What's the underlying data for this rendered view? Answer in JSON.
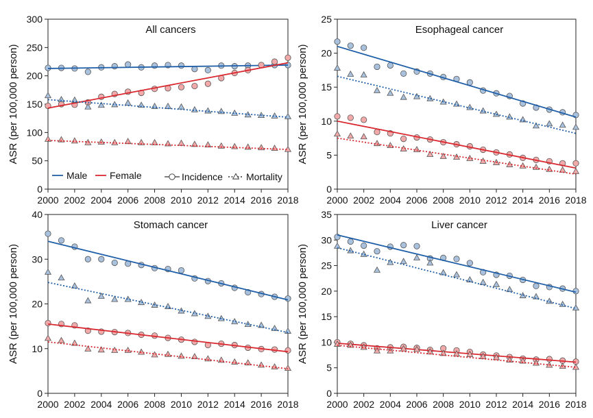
{
  "colors": {
    "male": "#1f5fa8",
    "female": "#d9282f",
    "male_fill": "#a9c1dd",
    "female_fill": "#f2a9a9",
    "marker_stroke": "#555555"
  },
  "legend": {
    "male": "Male",
    "female": "Female",
    "incidence": "Incidence",
    "mortality": "Mortality"
  },
  "chart_data": [
    {
      "type": "scatter",
      "title": "All cancers",
      "xlabel": "",
      "ylabel": "ASR (per 100,000 person)",
      "xlim": [
        2000,
        2018
      ],
      "ylim": [
        0,
        300
      ],
      "xticks": [
        2000,
        2002,
        2004,
        2006,
        2008,
        2010,
        2012,
        2014,
        2016,
        2018
      ],
      "yticks": [
        0,
        50,
        100,
        150,
        200,
        250,
        300
      ],
      "x": [
        2000,
        2001,
        2002,
        2003,
        2004,
        2005,
        2006,
        2007,
        2008,
        2009,
        2010,
        2011,
        2012,
        2013,
        2014,
        2015,
        2016,
        2017,
        2018
      ],
      "legend_shown": true,
      "series": [
        {
          "group": "male",
          "measure": "incidence",
          "values": [
            214,
            214,
            213,
            207,
            215,
            217,
            220,
            215,
            218,
            219,
            218,
            212,
            210,
            218,
            217,
            218,
            219,
            219,
            219
          ],
          "trend": [
            213,
            219
          ]
        },
        {
          "group": "female",
          "measure": "incidence",
          "values": [
            147,
            150,
            149,
            153,
            163,
            168,
            172,
            170,
            177,
            178,
            180,
            182,
            186,
            196,
            205,
            210,
            219,
            225,
            232
          ],
          "trend": [
            143,
            223
          ]
        },
        {
          "group": "male",
          "measure": "mortality",
          "values": [
            165,
            158,
            157,
            145,
            148,
            149,
            152,
            148,
            146,
            146,
            145,
            140,
            138,
            137,
            134,
            131,
            130,
            129,
            128
          ],
          "trend": [
            158,
            127
          ]
        },
        {
          "group": "female",
          "measure": "mortality",
          "values": [
            88,
            87,
            85,
            82,
            83,
            82,
            84,
            82,
            82,
            80,
            81,
            79,
            78,
            76,
            75,
            74,
            73,
            72,
            70
          ],
          "trend": [
            86,
            70
          ]
        }
      ]
    },
    {
      "type": "scatter",
      "title": "Esophageal cancer",
      "xlabel": "",
      "ylabel": "ASR (per 100,000 person)",
      "xlim": [
        2000,
        2018
      ],
      "ylim": [
        0,
        25
      ],
      "xticks": [
        2000,
        2002,
        2004,
        2006,
        2008,
        2010,
        2012,
        2014,
        2016,
        2018
      ],
      "yticks": [
        0,
        5,
        10,
        15,
        20,
        25
      ],
      "x": [
        2000,
        2001,
        2002,
        2003,
        2004,
        2005,
        2006,
        2007,
        2008,
        2009,
        2010,
        2011,
        2012,
        2013,
        2014,
        2015,
        2016,
        2017,
        2018
      ],
      "legend_shown": false,
      "series": [
        {
          "group": "male",
          "measure": "incidence",
          "values": [
            21.7,
            21.1,
            20.8,
            18.0,
            18.2,
            17.0,
            17.3,
            17.0,
            16.5,
            16.2,
            15.7,
            14.5,
            14.1,
            13.7,
            12.6,
            12.0,
            11.7,
            11.3,
            10.9
          ],
          "trend": [
            21.0,
            10.6
          ]
        },
        {
          "group": "female",
          "measure": "incidence",
          "values": [
            10.7,
            10.5,
            10.2,
            8.4,
            8.2,
            7.4,
            7.6,
            7.3,
            6.9,
            6.6,
            6.3,
            5.8,
            5.4,
            5.1,
            4.6,
            4.3,
            4.1,
            3.8,
            3.8
          ],
          "trend": [
            10.0,
            3.1
          ]
        },
        {
          "group": "male",
          "measure": "mortality",
          "values": [
            17.8,
            16.9,
            16.8,
            14.5,
            14.1,
            13.5,
            13.6,
            13.3,
            12.8,
            12.5,
            12.0,
            11.5,
            11.0,
            10.6,
            10.2,
            9.3,
            9.6,
            9.4,
            9.1
          ],
          "trend": [
            16.6,
            8.2
          ]
        },
        {
          "group": "female",
          "measure": "mortality",
          "values": [
            8.1,
            7.8,
            7.7,
            6.7,
            6.4,
            5.9,
            5.8,
            5.1,
            4.8,
            4.7,
            4.5,
            4.1,
            3.9,
            3.6,
            3.4,
            3.2,
            2.9,
            2.8,
            2.6
          ],
          "trend": [
            7.5,
            2.2
          ]
        }
      ]
    },
    {
      "type": "scatter",
      "title": "Stomach cancer",
      "xlabel": "",
      "ylabel": "ASR (per 100,000 person)",
      "xlim": [
        2000,
        2018
      ],
      "ylim": [
        0,
        40
      ],
      "xticks": [
        2000,
        2002,
        2004,
        2006,
        2008,
        2010,
        2012,
        2014,
        2016,
        2018
      ],
      "yticks": [
        0,
        10,
        20,
        30,
        40
      ],
      "x": [
        2000,
        2001,
        2002,
        2003,
        2004,
        2005,
        2006,
        2007,
        2008,
        2009,
        2010,
        2011,
        2012,
        2013,
        2014,
        2015,
        2016,
        2017,
        2018
      ],
      "legend_shown": false,
      "series": [
        {
          "group": "male",
          "measure": "incidence",
          "values": [
            35.7,
            34.2,
            32.8,
            30.0,
            30.0,
            29.2,
            29.0,
            28.7,
            28.0,
            27.8,
            27.5,
            25.7,
            25.1,
            24.6,
            23.6,
            22.6,
            22.2,
            21.6,
            21.2
          ],
          "trend": [
            34.0,
            20.9
          ]
        },
        {
          "group": "female",
          "measure": "incidence",
          "values": [
            15.7,
            15.5,
            15.2,
            14.0,
            13.8,
            13.7,
            13.5,
            13.1,
            12.9,
            12.4,
            12.0,
            11.5,
            10.8,
            11.1,
            10.8,
            10.2,
            9.9,
            9.8,
            9.6
          ],
          "trend": [
            15.5,
            9.3
          ]
        },
        {
          "group": "male",
          "measure": "mortality",
          "values": [
            27.1,
            25.8,
            24.0,
            20.7,
            21.7,
            21.0,
            21.0,
            20.3,
            19.7,
            19.4,
            18.4,
            17.8,
            17.2,
            16.7,
            16.0,
            15.4,
            15.2,
            14.5,
            13.9
          ],
          "trend": [
            24.8,
            13.6
          ]
        },
        {
          "group": "female",
          "measure": "mortality",
          "values": [
            12.3,
            11.8,
            11.2,
            9.9,
            9.7,
            9.6,
            9.6,
            9.2,
            8.6,
            8.7,
            8.3,
            8.2,
            7.7,
            7.4,
            7.0,
            6.8,
            6.3,
            5.9,
            5.6
          ],
          "trend": [
            11.5,
            5.5
          ]
        }
      ]
    },
    {
      "type": "scatter",
      "title": "Liver cancer",
      "xlabel": "",
      "ylabel": "ASR (per 100,000 person)",
      "xlim": [
        2000,
        2018
      ],
      "ylim": [
        0,
        35
      ],
      "xticks": [
        2000,
        2002,
        2004,
        2006,
        2008,
        2010,
        2012,
        2014,
        2016,
        2018
      ],
      "yticks": [
        0,
        5,
        10,
        15,
        20,
        25,
        30,
        35
      ],
      "x": [
        2000,
        2001,
        2002,
        2003,
        2004,
        2005,
        2006,
        2007,
        2008,
        2009,
        2010,
        2011,
        2012,
        2013,
        2014,
        2015,
        2016,
        2017,
        2018
      ],
      "legend_shown": false,
      "series": [
        {
          "group": "male",
          "measure": "incidence",
          "values": [
            30.6,
            29.7,
            28.9,
            27.8,
            28.7,
            29.0,
            28.8,
            26.4,
            26.5,
            26.3,
            25.5,
            23.7,
            23.2,
            23.0,
            22.2,
            21.0,
            20.8,
            20.5,
            20.0
          ],
          "trend": [
            31.0,
            19.8
          ]
        },
        {
          "group": "female",
          "measure": "incidence",
          "values": [
            10.0,
            9.7,
            9.4,
            8.8,
            9.0,
            9.1,
            8.9,
            8.5,
            8.8,
            8.4,
            8.1,
            7.6,
            7.4,
            7.1,
            6.8,
            6.6,
            6.7,
            6.4,
            6.2
          ],
          "trend": [
            9.8,
            6.1
          ]
        },
        {
          "group": "male",
          "measure": "mortality",
          "values": [
            28.8,
            27.9,
            27.2,
            24.1,
            25.6,
            25.8,
            26.5,
            25.5,
            23.6,
            23.2,
            22.2,
            21.7,
            21.3,
            20.3,
            19.1,
            18.9,
            18.0,
            17.4,
            16.7
          ],
          "trend": [
            28.5,
            16.6
          ]
        },
        {
          "group": "female",
          "measure": "mortality",
          "values": [
            9.6,
            9.4,
            9.0,
            8.3,
            8.3,
            8.7,
            8.6,
            8.1,
            7.8,
            7.7,
            7.6,
            7.2,
            7.0,
            6.5,
            6.3,
            5.9,
            5.5,
            5.3,
            5.1
          ],
          "trend": [
            9.4,
            5.1
          ]
        }
      ]
    }
  ]
}
